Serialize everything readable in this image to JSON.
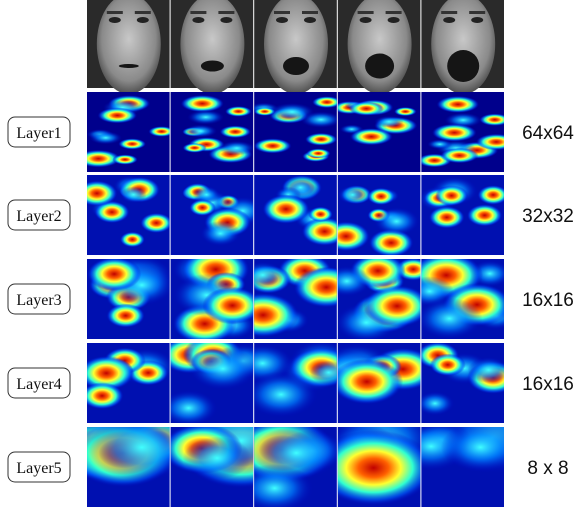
{
  "rows": [
    {
      "label": "Layer1",
      "resolution": "64x64"
    },
    {
      "label": "Layer2",
      "resolution": "32x32"
    },
    {
      "label": "Layer3",
      "resolution": "16x16"
    },
    {
      "label": "Layer4",
      "resolution": "16x16"
    },
    {
      "label": "Layer5",
      "resolution": "8 x 8"
    }
  ]
}
